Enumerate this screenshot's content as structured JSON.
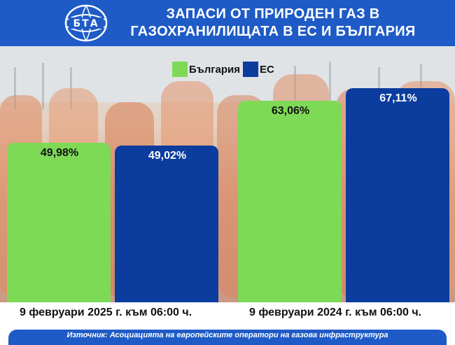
{
  "header": {
    "logo_text": "БТА",
    "title_line1": "ЗАПАСИ ОТ ПРИРОДЕН ГАЗ В",
    "title_line2": "ГАЗОХРАНИЛИЩАТА В ЕС И БЪЛГАРИЯ"
  },
  "colors": {
    "brand_blue": "#1e5bc6",
    "bulgaria": "#7ed957",
    "eu": "#0b3c9e"
  },
  "chart_data": {
    "type": "bar",
    "title": "ЗАПАСИ ОТ ПРИРОДЕН ГАЗ В ГАЗОХРАНИЛИЩАТА В ЕС И БЪЛГАРИЯ",
    "categories": [
      "9 февруари 2025 г. към 06:00 ч.",
      "9 февруари 2024 г. към 06:00 ч."
    ],
    "series": [
      {
        "name": "България",
        "values": [
          49.98,
          63.06
        ],
        "labels": [
          "49,98%",
          "63,06%"
        ],
        "color": "#7ed957"
      },
      {
        "name": "ЕС",
        "values": [
          49.02,
          67.11
        ],
        "labels": [
          "49,02%",
          "67,11%"
        ],
        "color": "#0b3c9e"
      }
    ],
    "ylim": [
      0,
      80
    ],
    "grid": false,
    "legend": "top-center"
  },
  "footer": {
    "source": "Източник: Асоциацията на европейските оператори на газова инфраструктура"
  }
}
